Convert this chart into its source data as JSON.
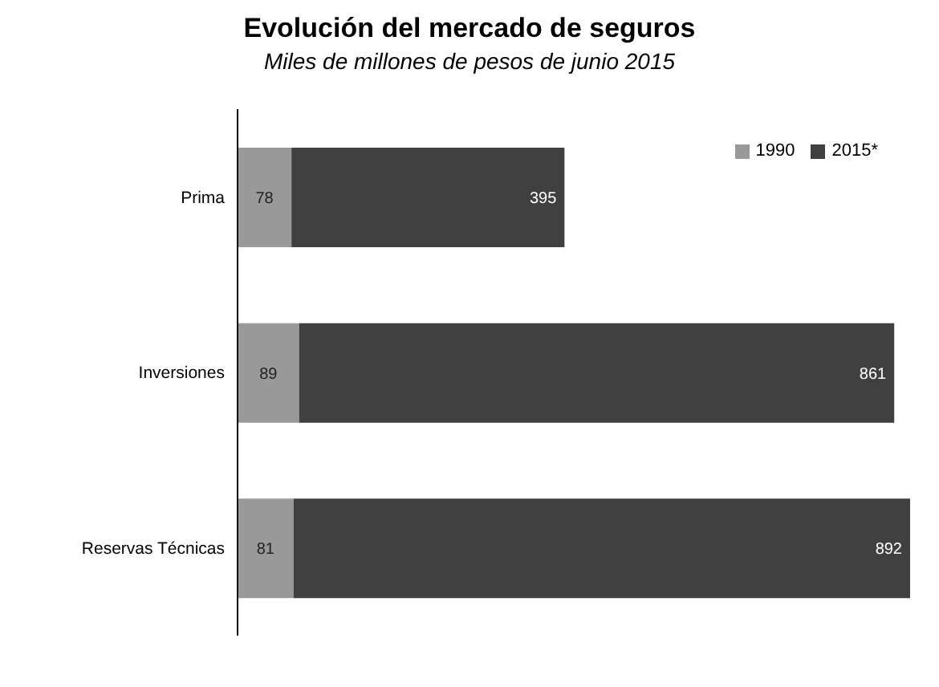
{
  "chart_data": {
    "type": "bar",
    "orientation": "horizontal",
    "stacked": true,
    "title": "Evolución del mercado de seguros",
    "subtitle": "Miles de millones de pesos de junio 2015",
    "categories": [
      "Prima",
      "Inversiones",
      "Reservas Técnicas"
    ],
    "series": [
      {
        "name": "1990",
        "color": "#999999",
        "values": [
          78,
          89,
          81
        ]
      },
      {
        "name": "2015*",
        "color": "#404040",
        "values": [
          395,
          861,
          892
        ]
      }
    ],
    "data_labels": true,
    "legend": "top right"
  }
}
